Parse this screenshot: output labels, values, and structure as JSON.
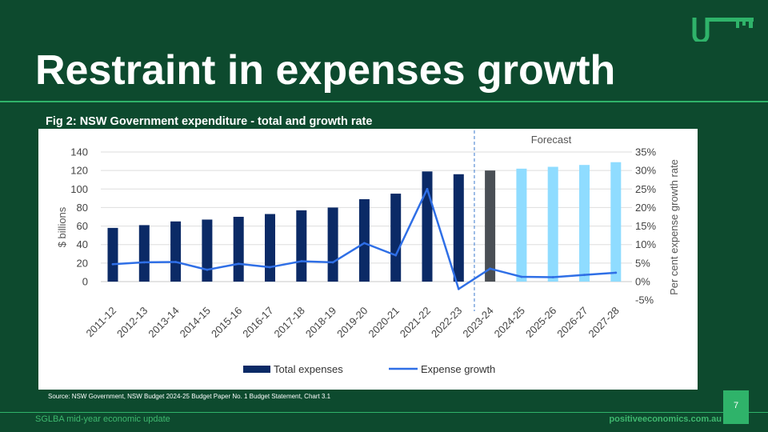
{
  "slide": {
    "title": "Restraint in expenses growth",
    "fig_caption": "Fig 2: NSW Government expenditure - total and growth rate",
    "source": "Source: NSW Government, NSW Budget 2024-25 Budget Paper No. 1 Budget Statement, Chart 3.1",
    "page_number": "7",
    "footer_left": "SGLBA mid-year economic update",
    "footer_right": "positiveeconomics.com.au"
  },
  "colors": {
    "background": "#0d4a2e",
    "accent": "#2fb36a",
    "actual_bar": "#0b2a66",
    "budget_bar": "#4a4f55",
    "forecast_bar": "#8fdcff",
    "growth_line": "#2f6fe6"
  },
  "chart_data": {
    "type": "bar",
    "title": "",
    "categories": [
      "2011-12",
      "2012-13",
      "2013-14",
      "2014-15",
      "2015-16",
      "2016-17",
      "2017-18",
      "2018-19",
      "2019-20",
      "2020-21",
      "2021-22",
      "2022-23",
      "2023-24",
      "2024-25",
      "2025-26",
      "2026-27",
      "2027-28"
    ],
    "series": [
      {
        "name": "Total expenses",
        "type": "bar",
        "axis": "left",
        "values": [
          58,
          61,
          65,
          67,
          70,
          73,
          77,
          80,
          89,
          95,
          119,
          116,
          120,
          122,
          124,
          126,
          129
        ]
      },
      {
        "name": "Expense growth",
        "type": "line",
        "axis": "right",
        "values": [
          4.7,
          5.2,
          5.3,
          3.2,
          4.8,
          3.9,
          5.5,
          5.2,
          10.4,
          7.1,
          25.0,
          -2.0,
          3.5,
          1.3,
          1.2,
          1.8,
          2.4
        ]
      }
    ],
    "forecast_label": "Forecast",
    "forecast_starts_at": "2023-24",
    "ylabel": "$ billions",
    "ylim": [
      0,
      140
    ],
    "yticks": [
      "0",
      "20",
      "40",
      "60",
      "80",
      "100",
      "120",
      "140"
    ],
    "y2label": "Per cent expense growth rate",
    "y2lim": [
      -5,
      35
    ],
    "y2ticks": [
      "-5%",
      "0%",
      "5%",
      "10%",
      "15%",
      "20%",
      "25%",
      "30%",
      "35%"
    ],
    "grid": true,
    "legend_position": "bottom"
  }
}
